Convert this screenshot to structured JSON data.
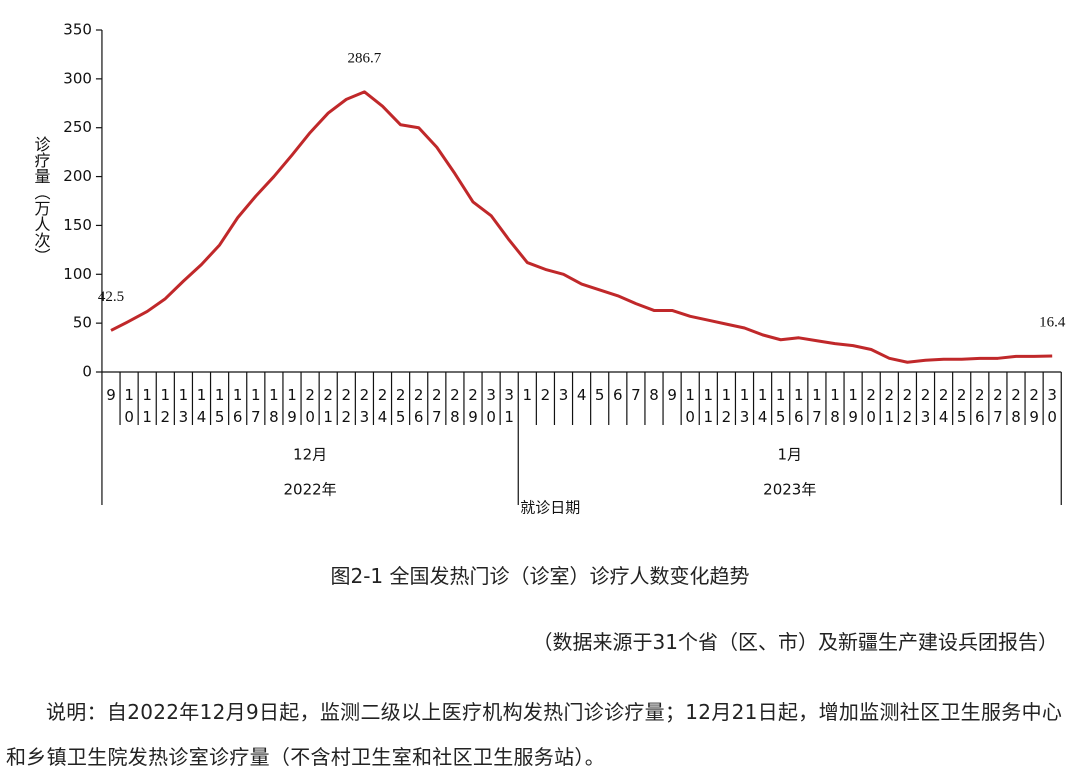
{
  "chart_data": {
    "type": "line",
    "y_label": "诊疗量（万人次）",
    "x_label": "就诊日期",
    "months": [
      "12月",
      "1月"
    ],
    "years": [
      "2022年",
      "2023年"
    ],
    "categories": [
      9,
      10,
      11,
      12,
      13,
      14,
      15,
      16,
      17,
      18,
      19,
      20,
      21,
      22,
      23,
      24,
      25,
      26,
      27,
      28,
      29,
      30,
      31,
      1,
      2,
      3,
      4,
      5,
      6,
      7,
      8,
      9,
      10,
      11,
      12,
      13,
      14,
      15,
      16,
      17,
      18,
      19,
      20,
      21,
      22,
      23,
      24,
      25,
      26,
      27,
      28,
      29,
      30
    ],
    "series": [
      {
        "name": "诊疗量",
        "color": "#c0282a",
        "values": [
          42.5,
          52,
          62,
          75,
          93,
          110,
          130,
          158,
          180,
          200,
          222,
          245,
          265,
          279,
          286.7,
          272,
          253,
          250,
          230,
          203,
          174,
          160,
          135,
          112,
          105,
          100,
          90,
          84,
          78,
          70,
          63,
          63,
          57,
          53,
          49,
          45,
          38,
          33,
          35,
          32,
          29,
          27,
          23,
          14,
          10,
          12,
          13,
          13,
          14,
          14,
          16,
          16,
          16.4
        ]
      }
    ],
    "data_labels": [
      0,
      14,
      52
    ],
    "ylim": [
      0,
      350
    ],
    "yticks": [
      0,
      50,
      100,
      150,
      200,
      250,
      300,
      350
    ]
  },
  "caption": "图2-1  全国发热门诊（诊室）诊疗人数变化趋势",
  "source": "（数据来源于31个省（区、市）及新疆生产建设兵团报告）",
  "note": "说明：自2022年12月9日起，监测二级以上医疗机构发热门诊诊疗量；12月21日起，增加监测社区卫生服务中心和乡镇卫生院发热诊室诊疗量（不含村卫生室和社区卫生服务站）。"
}
